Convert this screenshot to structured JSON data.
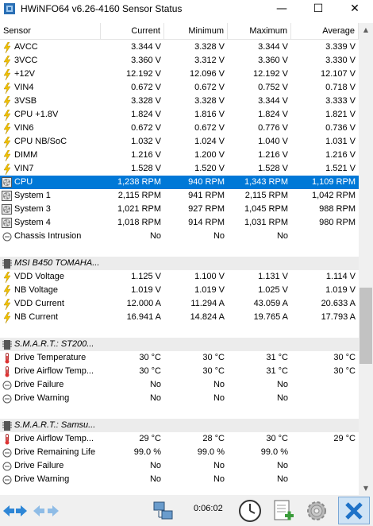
{
  "window": {
    "title": "HWiNFO64 v6.26-4160 Sensor Status",
    "minimize": "—",
    "maximize": "☐",
    "close": "✕"
  },
  "columns": [
    "Sensor",
    "Current",
    "Minimum",
    "Maximum",
    "Average"
  ],
  "rows": [
    {
      "type": "data",
      "icon": "bolt",
      "name": "AVCC",
      "cur": "3.344 V",
      "min": "3.328 V",
      "max": "3.344 V",
      "avg": "3.339 V"
    },
    {
      "type": "data",
      "icon": "bolt",
      "name": "3VCC",
      "cur": "3.360 V",
      "min": "3.312 V",
      "max": "3.360 V",
      "avg": "3.330 V"
    },
    {
      "type": "data",
      "icon": "bolt",
      "name": "+12V",
      "cur": "12.192 V",
      "min": "12.096 V",
      "max": "12.192 V",
      "avg": "12.107 V"
    },
    {
      "type": "data",
      "icon": "bolt",
      "name": "VIN4",
      "cur": "0.672 V",
      "min": "0.672 V",
      "max": "0.752 V",
      "avg": "0.718 V"
    },
    {
      "type": "data",
      "icon": "bolt",
      "name": "3VSB",
      "cur": "3.328 V",
      "min": "3.328 V",
      "max": "3.344 V",
      "avg": "3.333 V"
    },
    {
      "type": "data",
      "icon": "bolt",
      "name": "CPU +1.8V",
      "cur": "1.824 V",
      "min": "1.816 V",
      "max": "1.824 V",
      "avg": "1.821 V"
    },
    {
      "type": "data",
      "icon": "bolt",
      "name": "VIN6",
      "cur": "0.672 V",
      "min": "0.672 V",
      "max": "0.776 V",
      "avg": "0.736 V"
    },
    {
      "type": "data",
      "icon": "bolt",
      "name": "CPU NB/SoC",
      "cur": "1.032 V",
      "min": "1.024 V",
      "max": "1.040 V",
      "avg": "1.031 V"
    },
    {
      "type": "data",
      "icon": "bolt",
      "name": "DIMM",
      "cur": "1.216 V",
      "min": "1.200 V",
      "max": "1.216 V",
      "avg": "1.216 V"
    },
    {
      "type": "data",
      "icon": "bolt",
      "name": "VIN7",
      "cur": "1.528 V",
      "min": "1.520 V",
      "max": "1.528 V",
      "avg": "1.521 V"
    },
    {
      "type": "data",
      "icon": "fan",
      "name": "CPU",
      "cur": "1,238 RPM",
      "min": "940 RPM",
      "max": "1,343 RPM",
      "avg": "1,109 RPM",
      "selected": true
    },
    {
      "type": "data",
      "icon": "fan",
      "name": "System 1",
      "cur": "2,115 RPM",
      "min": "941 RPM",
      "max": "2,115 RPM",
      "avg": "1,042 RPM"
    },
    {
      "type": "data",
      "icon": "fan",
      "name": "System 3",
      "cur": "1,021 RPM",
      "min": "927 RPM",
      "max": "1,045 RPM",
      "avg": "988 RPM"
    },
    {
      "type": "data",
      "icon": "fan",
      "name": "System 4",
      "cur": "1,018 RPM",
      "min": "914 RPM",
      "max": "1,031 RPM",
      "avg": "980 RPM"
    },
    {
      "type": "data",
      "icon": "circle",
      "name": "Chassis Intrusion",
      "cur": "No",
      "min": "No",
      "max": "No",
      "avg": ""
    },
    {
      "type": "empty"
    },
    {
      "type": "group",
      "icon": "chip",
      "name": "MSI B450 TOMAHA..."
    },
    {
      "type": "data",
      "icon": "bolt",
      "name": "VDD Voltage",
      "cur": "1.125 V",
      "min": "1.100 V",
      "max": "1.131 V",
      "avg": "1.114 V"
    },
    {
      "type": "data",
      "icon": "bolt",
      "name": "NB Voltage",
      "cur": "1.019 V",
      "min": "1.019 V",
      "max": "1.025 V",
      "avg": "1.019 V"
    },
    {
      "type": "data",
      "icon": "bolt",
      "name": "VDD Current",
      "cur": "12.000 A",
      "min": "11.294 A",
      "max": "43.059 A",
      "avg": "20.633 A"
    },
    {
      "type": "data",
      "icon": "bolt",
      "name": "NB Current",
      "cur": "16.941 A",
      "min": "14.824 A",
      "max": "19.765 A",
      "avg": "17.793 A"
    },
    {
      "type": "empty"
    },
    {
      "type": "group",
      "icon": "chip",
      "name": "S.M.A.R.T.: ST200..."
    },
    {
      "type": "data",
      "icon": "therm",
      "name": "Drive Temperature",
      "cur": "30 °C",
      "min": "30 °C",
      "max": "31 °C",
      "avg": "30 °C"
    },
    {
      "type": "data",
      "icon": "therm",
      "name": "Drive Airflow Temp...",
      "cur": "30 °C",
      "min": "30 °C",
      "max": "31 °C",
      "avg": "30 °C"
    },
    {
      "type": "data",
      "icon": "circle",
      "name": "Drive Failure",
      "cur": "No",
      "min": "No",
      "max": "No",
      "avg": ""
    },
    {
      "type": "data",
      "icon": "circle",
      "name": "Drive Warning",
      "cur": "No",
      "min": "No",
      "max": "No",
      "avg": ""
    },
    {
      "type": "empty"
    },
    {
      "type": "group",
      "icon": "chip",
      "name": "S.M.A.R.T.: Samsu..."
    },
    {
      "type": "data",
      "icon": "therm",
      "name": "Drive Airflow Temp...",
      "cur": "29 °C",
      "min": "28 °C",
      "max": "30 °C",
      "avg": "29 °C"
    },
    {
      "type": "data",
      "icon": "circle",
      "name": "Drive Remaining Life",
      "cur": "99.0 %",
      "min": "99.0 %",
      "max": "99.0 %",
      "avg": ""
    },
    {
      "type": "data",
      "icon": "circle",
      "name": "Drive Failure",
      "cur": "No",
      "min": "No",
      "max": "No",
      "avg": ""
    },
    {
      "type": "data",
      "icon": "circle",
      "name": "Drive Warning",
      "cur": "No",
      "min": "No",
      "max": "No",
      "avg": ""
    }
  ],
  "toolbar": {
    "elapsed": "0:06:02"
  },
  "colors": {
    "selected": "#0078d7",
    "group_bg": "#ececec",
    "bolt": "#f2c200",
    "toolbar_bg": "#f0f0f0",
    "close_btn_bg": "#cfe3f5"
  }
}
